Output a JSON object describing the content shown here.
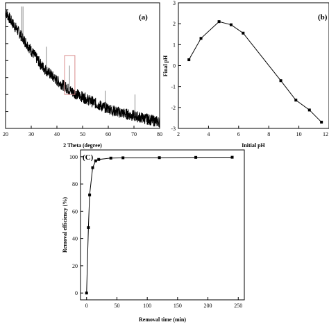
{
  "colors": {
    "ink": "#000000",
    "background": "#ffffff",
    "highlight_box": "#d98a8a"
  },
  "chart_data": [
    {
      "id": "a",
      "type": "line",
      "panel_label": "(a)",
      "xlabel": "2 Theta (degree)",
      "ylabel": "",
      "xlim": [
        20,
        80
      ],
      "ylim": [
        0,
        1
      ],
      "x_ticks": [
        20,
        30,
        40,
        50,
        60,
        70,
        80
      ],
      "y_ticks": [],
      "y_tick_count": 7,
      "noisy_diffractogram": true,
      "x": [
        20,
        22,
        24,
        26,
        28,
        30,
        32,
        34,
        36,
        38,
        40,
        42,
        44,
        46,
        48,
        50,
        52,
        54,
        56,
        58,
        60,
        62,
        64,
        66,
        68,
        70,
        72,
        74,
        76,
        78,
        80
      ],
      "y": [
        0.93,
        0.86,
        0.8,
        0.74,
        0.68,
        0.62,
        0.56,
        0.5,
        0.46,
        0.42,
        0.38,
        0.35,
        0.32,
        0.29,
        0.27,
        0.25,
        0.23,
        0.21,
        0.19,
        0.17,
        0.16,
        0.14,
        0.13,
        0.12,
        0.11,
        0.1,
        0.09,
        0.08,
        0.07,
        0.06,
        0.05
      ],
      "peaks": [
        {
          "x": 26.2,
          "top": 0.97
        },
        {
          "x": 26.8,
          "top": 0.97
        },
        {
          "x": 35.9,
          "top": 0.65
        },
        {
          "x": 44.9,
          "top": 0.5
        },
        {
          "x": 58.8,
          "top": 0.3
        },
        {
          "x": 70.4,
          "top": 0.27
        }
      ],
      "highlight_range": {
        "x": [
          43,
          47
        ],
        "y": [
          0.27,
          0.58
        ]
      }
    },
    {
      "id": "b",
      "type": "line",
      "panel_label": "(b)",
      "xlabel": "Initial pH",
      "ylabel": "Final pH",
      "xlim": [
        2,
        12
      ],
      "ylim": [
        -3,
        3
      ],
      "x_ticks": [
        2,
        4,
        6,
        8,
        10,
        12
      ],
      "y_ticks": [
        -3,
        -2,
        -1,
        0,
        1,
        2,
        3
      ],
      "x": [
        2.7,
        3.5,
        4.7,
        5.5,
        6.3,
        8.8,
        9.8,
        10.7,
        11.5
      ],
      "y": [
        0.28,
        1.3,
        2.1,
        1.95,
        1.55,
        -0.72,
        -1.65,
        -2.12,
        -2.7
      ]
    },
    {
      "id": "c",
      "type": "line",
      "panel_label": "(C)",
      "xlabel": "Removal time (min)",
      "ylabel": "Removal efficiency (%)",
      "xlim": [
        -10,
        260
      ],
      "ylim": [
        -5,
        105
      ],
      "x_ticks": [
        0,
        50,
        100,
        150,
        200,
        250
      ],
      "y_ticks": [
        0,
        20,
        40,
        60,
        80,
        100
      ],
      "x": [
        0,
        3,
        5,
        10,
        15,
        20,
        40,
        60,
        120,
        180,
        240
      ],
      "y": [
        0,
        48,
        72,
        92,
        97,
        98,
        99,
        99.2,
        99.3,
        99.5,
        99.6
      ]
    }
  ]
}
